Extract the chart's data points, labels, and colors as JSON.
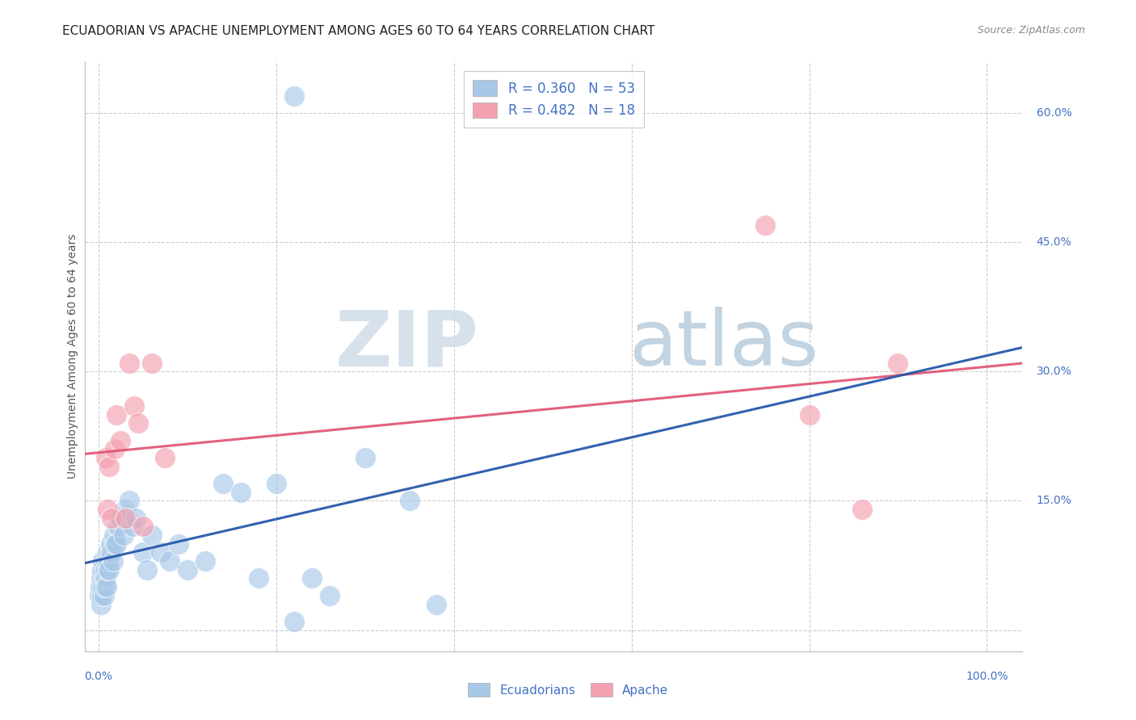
{
  "title": "ECUADORIAN VS APACHE UNEMPLOYMENT AMONG AGES 60 TO 64 YEARS CORRELATION CHART",
  "source": "Source: ZipAtlas.com",
  "ylabel": "Unemployment Among Ages 60 to 64 years",
  "yticks": [
    0.0,
    0.15,
    0.3,
    0.45,
    0.6
  ],
  "ytick_labels": [
    "",
    "15.0%",
    "30.0%",
    "45.0%",
    "60.0%"
  ],
  "xticks": [
    0.0,
    0.2,
    0.4,
    0.6,
    0.8,
    1.0
  ],
  "xlim": [
    -0.015,
    1.04
  ],
  "ylim": [
    -0.025,
    0.66
  ],
  "legend_color1": "#a8c8e8",
  "legend_color2": "#f4a0b0",
  "background_color": "#ffffff",
  "grid_color": "#cccccc",
  "axis_label_color": "#4472c4",
  "ecuadorian_color": "#a8c8e8",
  "apache_color": "#f4a0b0",
  "ecuadorian_line_color": "#2255aa",
  "apache_line_color": "#e05070",
  "watermark_zip_color": "#c8d8ec",
  "watermark_atlas_color": "#b8cce0",
  "ecuadorian_R": 0.36,
  "ecuadorian_N": 53,
  "apache_R": 0.482,
  "apache_N": 18,
  "ecuadorian_x": [
    0.001,
    0.002,
    0.003,
    0.003,
    0.004,
    0.004,
    0.005,
    0.005,
    0.006,
    0.006,
    0.007,
    0.007,
    0.008,
    0.008,
    0.009,
    0.01,
    0.01,
    0.011,
    0.012,
    0.013,
    0.014,
    0.015,
    0.016,
    0.017,
    0.018,
    0.02,
    0.022,
    0.025,
    0.028,
    0.03,
    0.032,
    0.035,
    0.038,
    0.042,
    0.05,
    0.055,
    0.06,
    0.07,
    0.08,
    0.09,
    0.1,
    0.12,
    0.14,
    0.16,
    0.18,
    0.2,
    0.22,
    0.24,
    0.26,
    0.3,
    0.35,
    0.38,
    0.22
  ],
  "ecuadorian_y": [
    0.04,
    0.05,
    0.03,
    0.06,
    0.04,
    0.07,
    0.05,
    0.08,
    0.04,
    0.06,
    0.05,
    0.07,
    0.06,
    0.08,
    0.05,
    0.07,
    0.09,
    0.08,
    0.07,
    0.09,
    0.1,
    0.09,
    0.08,
    0.11,
    0.1,
    0.1,
    0.12,
    0.13,
    0.11,
    0.14,
    0.13,
    0.15,
    0.12,
    0.13,
    0.09,
    0.07,
    0.11,
    0.09,
    0.08,
    0.1,
    0.07,
    0.08,
    0.17,
    0.16,
    0.06,
    0.17,
    0.62,
    0.06,
    0.04,
    0.2,
    0.15,
    0.03,
    0.01
  ],
  "apache_x": [
    0.008,
    0.01,
    0.012,
    0.015,
    0.018,
    0.02,
    0.025,
    0.03,
    0.035,
    0.04,
    0.045,
    0.05,
    0.06,
    0.075,
    0.75,
    0.8,
    0.86,
    0.9
  ],
  "apache_y": [
    0.2,
    0.14,
    0.19,
    0.13,
    0.21,
    0.25,
    0.22,
    0.13,
    0.31,
    0.26,
    0.24,
    0.12,
    0.31,
    0.2,
    0.47,
    0.25,
    0.14,
    0.31
  ]
}
